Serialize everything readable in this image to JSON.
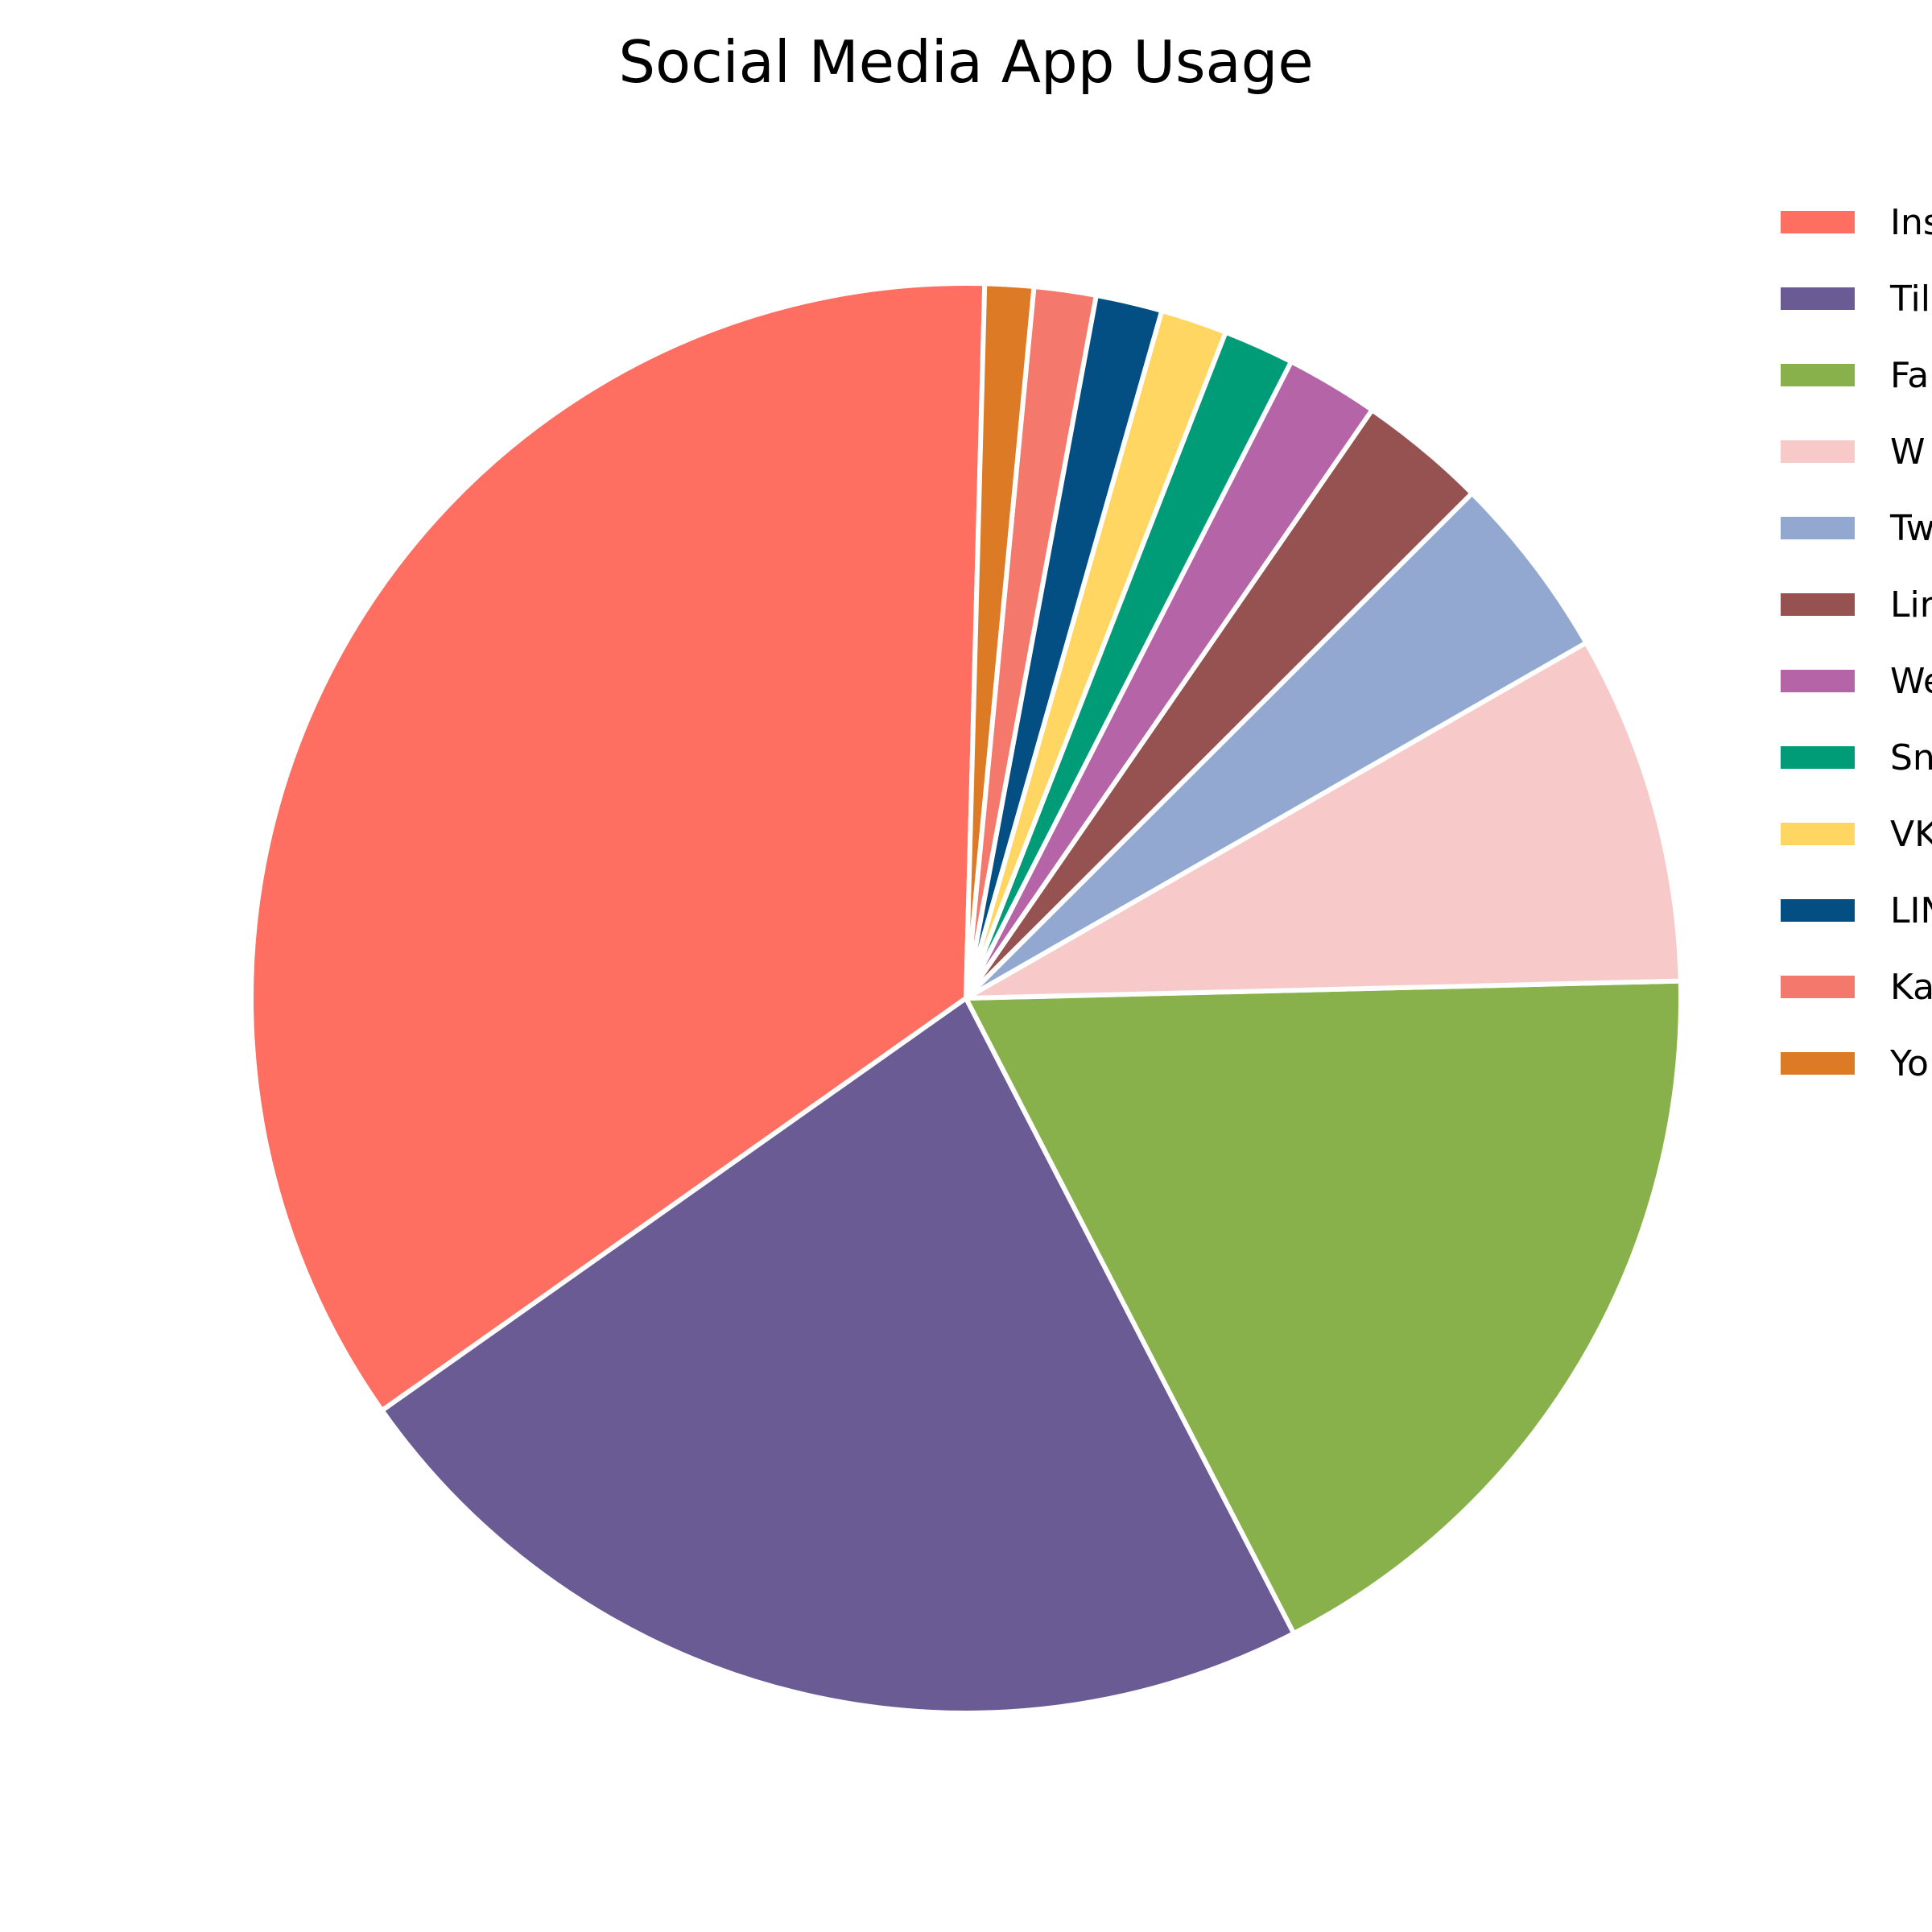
{
  "chart_data": {
    "type": "pie",
    "title": "Social Media App Usage",
    "legend_position": "right",
    "slice_edge_color": "#ffffff",
    "slices": [
      {
        "label": "Instagram",
        "legend_text": "Ins",
        "value": 35.2,
        "color": "#FF6F61"
      },
      {
        "label": "TikTok",
        "legend_text": "Til",
        "value": 22.8,
        "color": "#6B5B95"
      },
      {
        "label": "Facebook",
        "legend_text": "Fa",
        "value": 17.8,
        "color": "#88B04B"
      },
      {
        "label": "WhatsApp",
        "legend_text": "W",
        "value": 7.9,
        "color": "#F7CAC9"
      },
      {
        "label": "Twitter",
        "legend_text": "Tw",
        "value": 4.2,
        "color": "#92A8D1"
      },
      {
        "label": "LinkedIn",
        "legend_text": "Lir",
        "value": 2.9,
        "color": "#955251"
      },
      {
        "label": "WeChat",
        "legend_text": "We",
        "value": 2.1,
        "color": "#B565A7"
      },
      {
        "label": "Snapchat",
        "legend_text": "Sn",
        "value": 1.6,
        "color": "#009B77"
      },
      {
        "label": "VK",
        "legend_text": "VK",
        "value": 1.5,
        "color": "#FFD662"
      },
      {
        "label": "LINE",
        "legend_text": "LIN",
        "value": 1.5,
        "color": "#034F84"
      },
      {
        "label": "KakaoTalk",
        "legend_text": "Ka",
        "value": 1.4,
        "color": "#F4786B"
      },
      {
        "label": "YouTube",
        "legend_text": "Yo",
        "value": 1.1,
        "color": "#DD7A26"
      }
    ]
  }
}
